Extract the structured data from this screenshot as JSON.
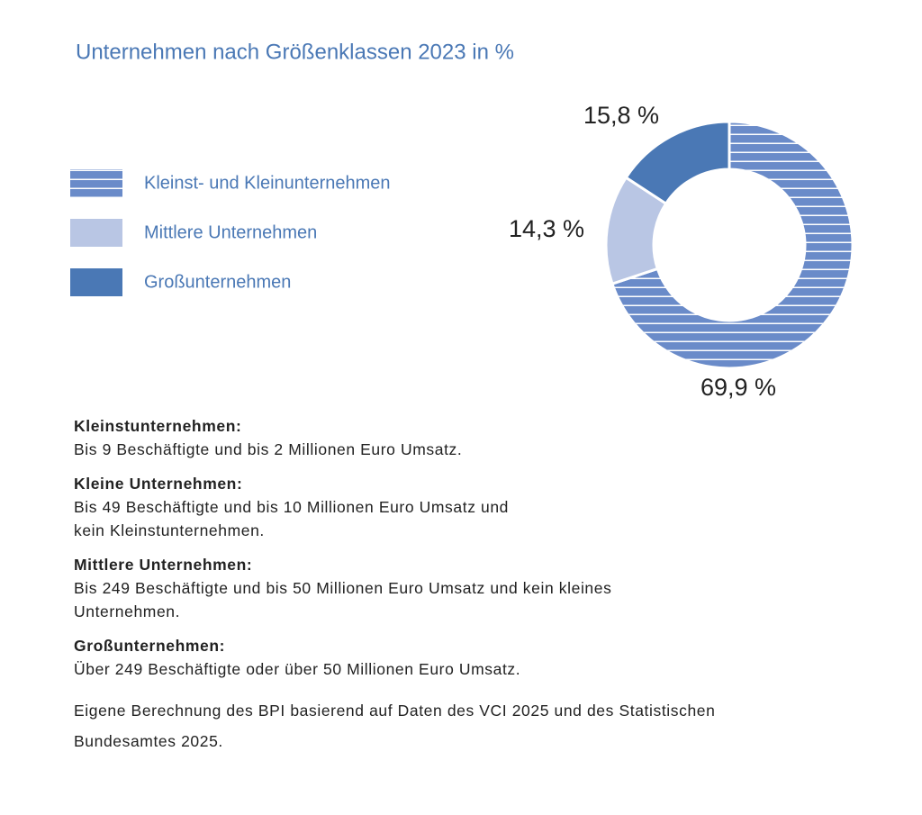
{
  "chart_data": {
    "type": "donut",
    "title": "Unternehmen nach Größenklassen 2023 in %",
    "series": [
      {
        "name": "Kleinst- und Kleinunternehmen",
        "color": "#6a8bc9",
        "hatch": "horizontal",
        "values": [
          69.9
        ],
        "value_labels": [
          "69,9 %"
        ]
      },
      {
        "name": "Mittlere Unternehmen",
        "color": "#b9c6e4",
        "values": [
          14.3
        ],
        "value_labels": [
          "14,3 %"
        ]
      },
      {
        "name": "Großunternehmen",
        "color": "#4a78b5",
        "values": [
          15.8
        ],
        "value_labels": [
          "15,8 %"
        ]
      }
    ]
  },
  "definitions": [
    {
      "term": "Kleinstunternehmen:",
      "lines": [
        "Bis 9 Beschäftigte und bis 2 Millionen Euro Umsatz."
      ]
    },
    {
      "term": "Kleine Unternehmen:",
      "lines": [
        "Bis 49 Beschäftigte und bis 10 Millionen Euro Umsatz und",
        "kein Kleinstunternehmen."
      ]
    },
    {
      "term": "Mittlere Unternehmen:",
      "lines": [
        "Bis 249 Beschäftigte und bis 50 Millionen Euro Umsatz und kein kleines",
        "Unternehmen."
      ]
    },
    {
      "term": "Großunternehmen:",
      "lines": [
        "Über 249 Beschäftigte oder über 50 Millionen Euro Umsatz."
      ]
    }
  ],
  "source": [
    "Eigene Berechnung des BPI basierend auf Daten des VCI 2025 und des Statistischen",
    "Bundesamtes 2025."
  ]
}
